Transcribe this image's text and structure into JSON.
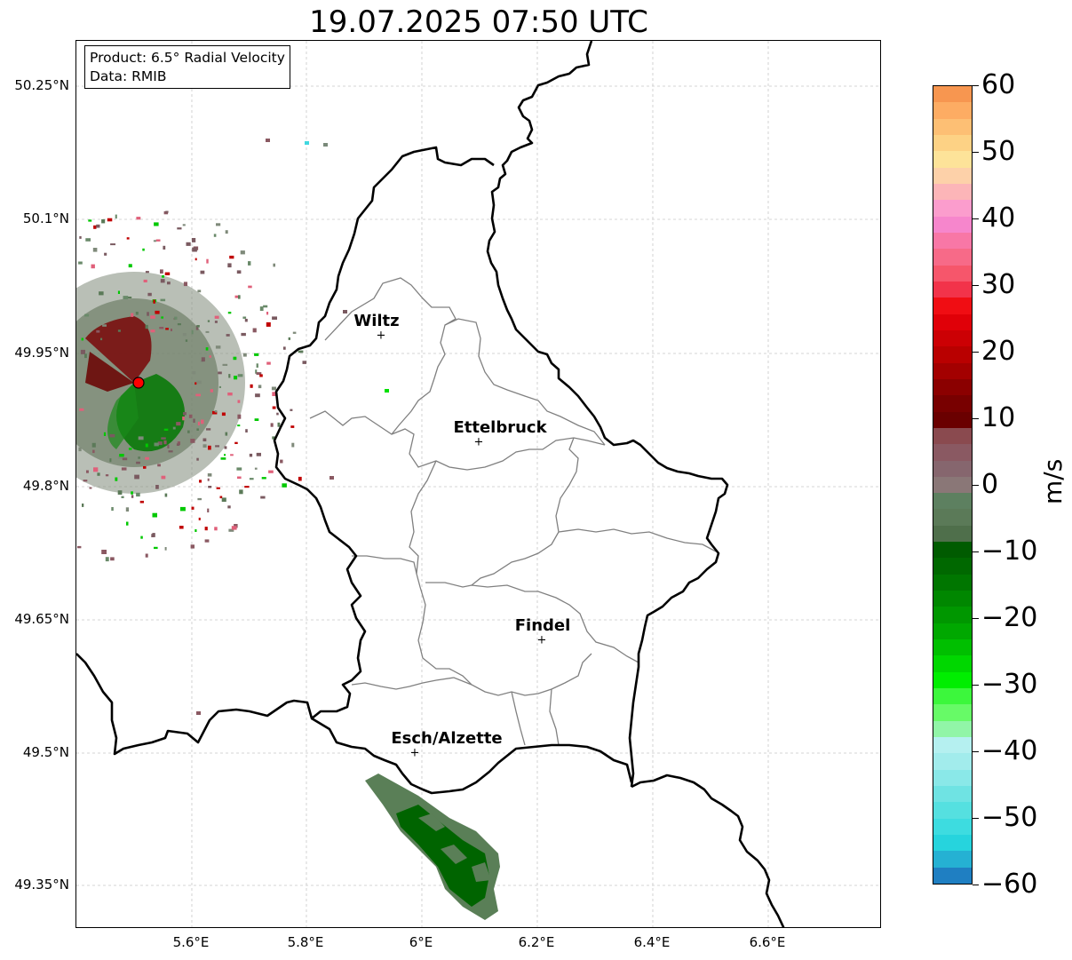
{
  "title": "19.07.2025 07:50 UTC",
  "info_box": {
    "product": "Product: 6.5° Radial Velocity",
    "data": "Data: RMIB"
  },
  "axes": {
    "lat_labels": [
      "50.25°N",
      "50.1°N",
      "49.95°N",
      "49.8°N",
      "49.65°N",
      "49.5°N",
      "49.35°N"
    ],
    "lon_labels": [
      "5.6°E",
      "5.8°E",
      "6°E",
      "6.2°E",
      "6.4°E",
      "6.6°E"
    ]
  },
  "cities": [
    {
      "name": "Wiltz"
    },
    {
      "name": "Ettelbruck"
    },
    {
      "name": "Findel"
    },
    {
      "name": "Esch/Alzette"
    }
  ],
  "colorbar": {
    "unit": "m/s",
    "tick_labels": [
      "60",
      "50",
      "40",
      "30",
      "20",
      "10",
      "0",
      "−10",
      "−20",
      "−30",
      "−40",
      "−50",
      "−60"
    ],
    "range": [
      -60,
      60
    ],
    "colors_top_to_bottom": [
      "#f79650",
      "#fdac63",
      "#fdbf74",
      "#fdd285",
      "#fde399",
      "#fdd1a9",
      "#fcb5b8",
      "#fb9dcd",
      "#f686cc",
      "#f877a6",
      "#f76a88",
      "#f6566b",
      "#f2334a",
      "#f00d13",
      "#e00008",
      "#cc0004",
      "#b90000",
      "#a30000",
      "#8b0000",
      "#780000",
      "#6a0000",
      "#8a4a4f",
      "#8a5962",
      "#86666e",
      "#8a7777",
      "#5d8060",
      "#5b7a58",
      "#4f6f4b",
      "#005b00",
      "#006800",
      "#007600",
      "#008700",
      "#009700",
      "#00a800",
      "#00bf00",
      "#00d700",
      "#00ee00",
      "#3cf73c",
      "#67fa67",
      "#91f5a7",
      "#b5f0f0",
      "#a2ecec",
      "#8ae8e8",
      "#6fe3e3",
      "#55e0e0",
      "#3ddce0",
      "#26d4dd",
      "#25b1d3",
      "#1f7fc2"
    ],
    "colors": {
      "approaching": "#006400",
      "receding": "#8b0000",
      "radar_site": "#ff0000"
    }
  }
}
